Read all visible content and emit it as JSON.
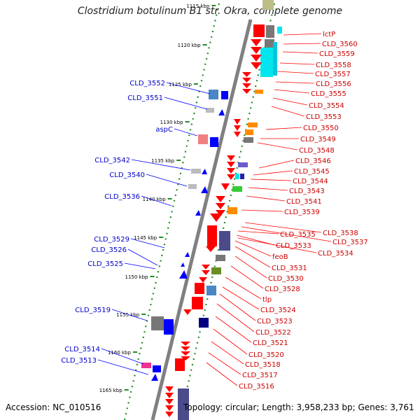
{
  "title": "Clostridium botulinum B1 str. Okra, complete genome",
  "footer": {
    "accession": "Accession: NC_010516",
    "topology": "Topology: circular; Length: 3,958,233 bp; Genes: 3,761"
  },
  "colors": {
    "forward": "#0000ff",
    "reverse": "#ff0000",
    "backbone": "#808080",
    "tick": "#228b22"
  },
  "kbp_ticks": [
    "1115 kbp",
    "1120 kbp",
    "1125 kbp",
    "1130 kbp",
    "1135 kbp",
    "1140 kbp",
    "1145 kbp",
    "1150 kbp",
    "1155 kbp",
    "1160 kbp",
    "1165 kbp"
  ],
  "left_labels": [
    "CLD_3552",
    "CLD_3551",
    "aspC",
    "CLD_3542",
    "CLD_3540",
    "CLD_3536",
    "CLD_3529",
    "CLD_3526",
    "CLD_3525",
    "CLD_3519",
    "CLD_3514",
    "CLD_3513"
  ],
  "right_labels": [
    "lctP",
    "CLD_3560",
    "CLD_3559",
    "CLD_3558",
    "CLD_3557",
    "CLD_3556",
    "CLD_3555",
    "CLD_3554",
    "CLD_3553",
    "CLD_3550",
    "CLD_3549",
    "CLD_3548",
    "CLD_3546",
    "CLD_3545",
    "CLD_3544",
    "CLD_3543",
    "CLD_3541",
    "CLD_3539",
    "CLD_3538",
    "CLD_3537",
    "CLD_3535",
    "CLD_3533",
    "CLD_3534",
    "feoB",
    "CLD_3531",
    "CLD_3530",
    "CLD_3528",
    "tlp",
    "CLD_3524",
    "CLD_3523",
    "CLD_3522",
    "CLD_3521",
    "CLD_3520",
    "CLD_3518",
    "CLD_3517",
    "CLD_3516"
  ]
}
